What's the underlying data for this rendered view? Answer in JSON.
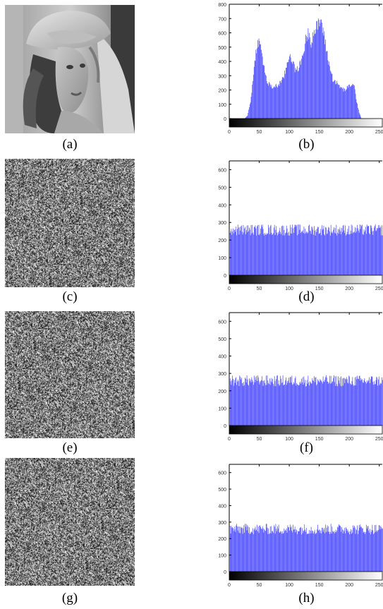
{
  "colors": {
    "bar": "#4a4aff",
    "bar_edge": "#2424d8",
    "axis": "#000000",
    "tick_text": "#333333"
  },
  "panels": {
    "a": {
      "caption": "(a)",
      "kind": "photo",
      "description_icon": "portrait-photo-icon"
    },
    "c": {
      "caption": "(c)",
      "kind": "noise"
    },
    "e": {
      "caption": "(e)",
      "kind": "noise"
    },
    "g": {
      "caption": "(g)",
      "kind": "noise"
    },
    "b": {
      "caption": "(b)"
    },
    "d": {
      "caption": "(d)"
    },
    "f": {
      "caption": "(f)"
    },
    "h": {
      "caption": "(h)"
    }
  },
  "chart_data": [
    {
      "panel": "b",
      "type": "bar",
      "title": "",
      "xlabel": "",
      "ylabel": "",
      "xlim": [
        0,
        255
      ],
      "ylim": [
        0,
        800
      ],
      "xticks": [
        0,
        50,
        100,
        150,
        200,
        250
      ],
      "yticks": [
        0,
        100,
        200,
        300,
        400,
        500,
        600,
        700,
        800
      ],
      "grid": false,
      "colorbar": "grayscale",
      "profile": [
        [
          0,
          0
        ],
        [
          25,
          0
        ],
        [
          30,
          20
        ],
        [
          35,
          120
        ],
        [
          40,
          300
        ],
        [
          44,
          480
        ],
        [
          48,
          540
        ],
        [
          52,
          500
        ],
        [
          56,
          400
        ],
        [
          62,
          260
        ],
        [
          70,
          220
        ],
        [
          80,
          230
        ],
        [
          90,
          280
        ],
        [
          96,
          380
        ],
        [
          100,
          450
        ],
        [
          104,
          420
        ],
        [
          110,
          330
        ],
        [
          118,
          380
        ],
        [
          124,
          480
        ],
        [
          128,
          570
        ],
        [
          132,
          600
        ],
        [
          136,
          540
        ],
        [
          140,
          600
        ],
        [
          146,
          640
        ],
        [
          152,
          690
        ],
        [
          156,
          620
        ],
        [
          160,
          520
        ],
        [
          166,
          380
        ],
        [
          172,
          280
        ],
        [
          180,
          240
        ],
        [
          190,
          200
        ],
        [
          196,
          210
        ],
        [
          200,
          230
        ],
        [
          204,
          240
        ],
        [
          208,
          220
        ],
        [
          212,
          120
        ],
        [
          216,
          40
        ],
        [
          220,
          0
        ],
        [
          255,
          0
        ]
      ]
    },
    {
      "panel": "d",
      "type": "bar",
      "title": "",
      "xlabel": "",
      "ylabel": "",
      "xlim": [
        0,
        255
      ],
      "ylim": [
        0,
        650
      ],
      "xticks": [
        0,
        50,
        100,
        150,
        200,
        250
      ],
      "yticks": [
        0,
        100,
        200,
        300,
        400,
        500,
        600
      ],
      "grid": false,
      "colorbar": "grayscale",
      "profile": [
        [
          0,
          250
        ],
        [
          255,
          250
        ]
      ],
      "noise_range": [
        225,
        290
      ]
    },
    {
      "panel": "f",
      "type": "bar",
      "title": "",
      "xlabel": "",
      "ylabel": "",
      "xlim": [
        0,
        255
      ],
      "ylim": [
        0,
        650
      ],
      "xticks": [
        0,
        50,
        100,
        150,
        200,
        250
      ],
      "yticks": [
        0,
        100,
        200,
        300,
        400,
        500,
        600
      ],
      "grid": false,
      "colorbar": "grayscale",
      "profile": [
        [
          0,
          250
        ],
        [
          255,
          250
        ]
      ],
      "noise_range": [
        225,
        290
      ]
    },
    {
      "panel": "h",
      "type": "bar",
      "title": "",
      "xlabel": "",
      "ylabel": "",
      "xlim": [
        0,
        255
      ],
      "ylim": [
        0,
        650
      ],
      "xticks": [
        0,
        50,
        100,
        150,
        200,
        250
      ],
      "yticks": [
        0,
        100,
        200,
        300,
        400,
        500,
        600
      ],
      "grid": false,
      "colorbar": "grayscale",
      "profile": [
        [
          0,
          250
        ],
        [
          255,
          250
        ]
      ],
      "noise_range": [
        225,
        290
      ]
    }
  ]
}
